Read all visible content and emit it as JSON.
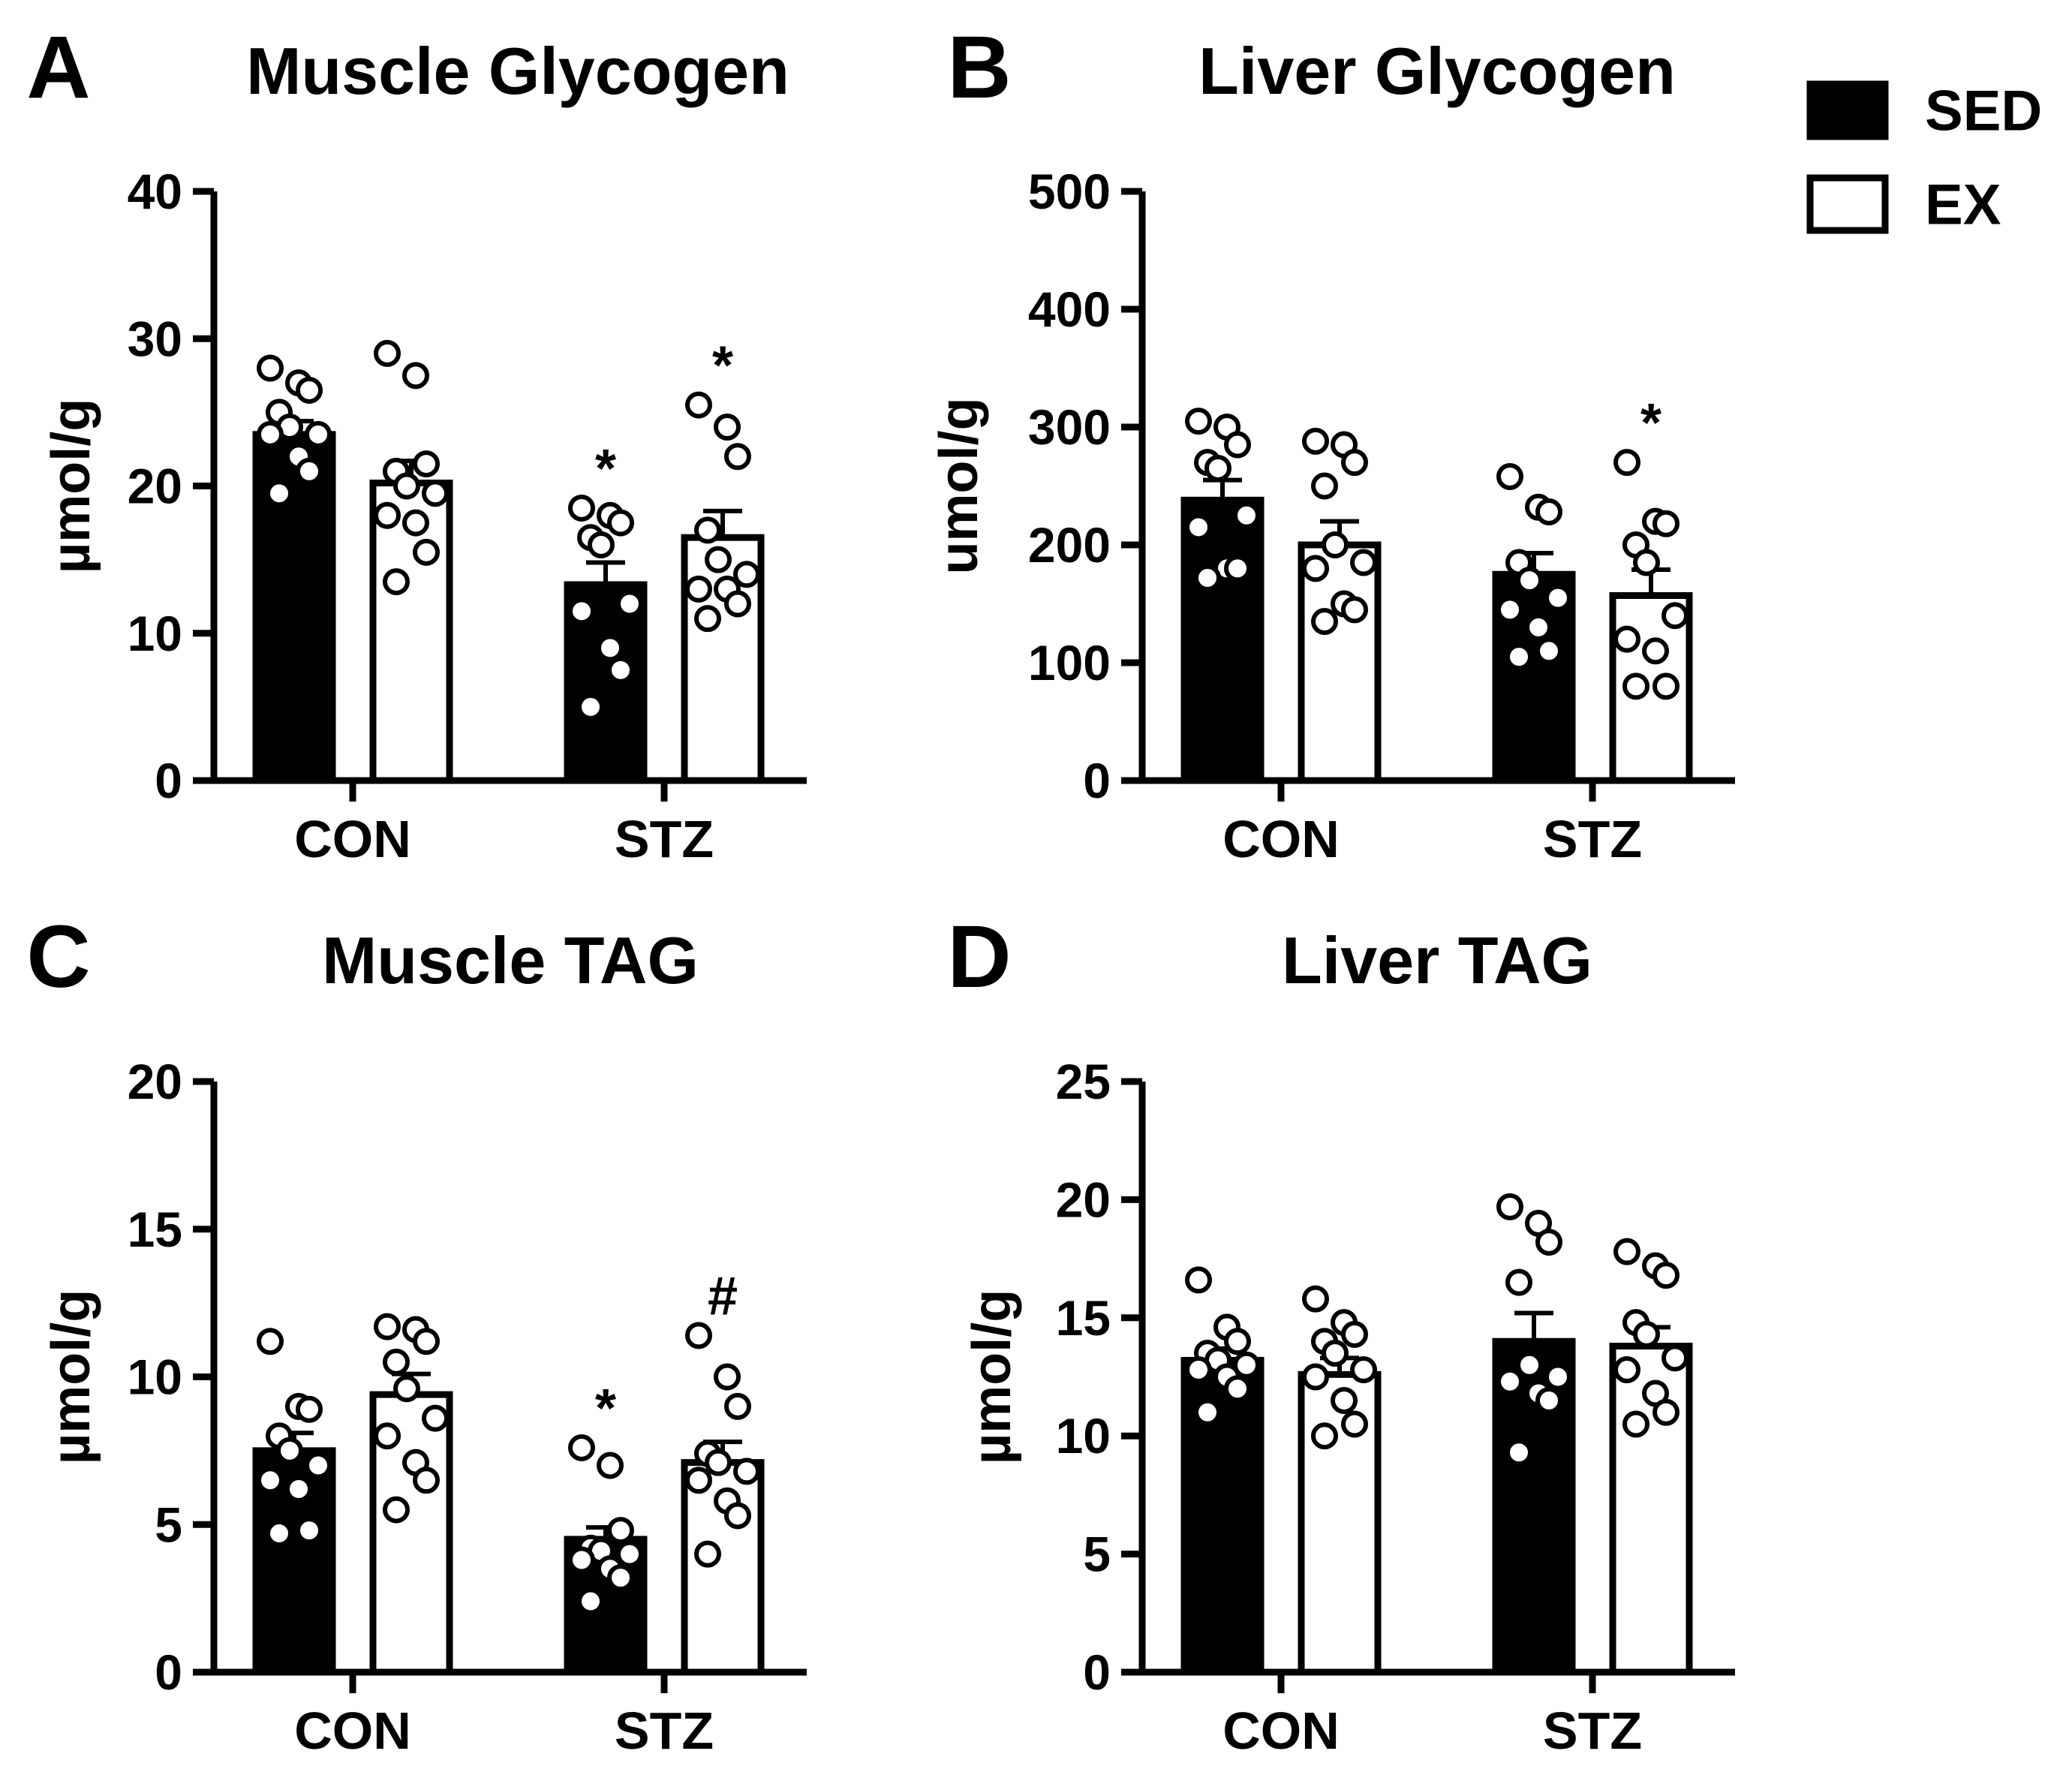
{
  "legend": {
    "items": [
      {
        "label": "SED",
        "fill": "#000000"
      },
      {
        "label": "EX",
        "fill": "#ffffff"
      }
    ]
  },
  "colors": {
    "ink": "#000000",
    "background": "#ffffff"
  },
  "chart_data": [
    {
      "panel": "A",
      "type": "bar",
      "title": "Muscle Glycogen",
      "ylabel": "µmol/g",
      "ylim": [
        0,
        40
      ],
      "yticks": [
        0,
        10,
        20,
        30,
        40
      ],
      "categories": [
        "CON",
        "STZ"
      ],
      "series": [
        {
          "name": "SED",
          "values": [
            23.5,
            13.3
          ],
          "sem": [
            0.9,
            1.5
          ],
          "points": [
            [
              28,
              27,
              26.5,
              25,
              24,
              23.5,
              23.5,
              22,
              21,
              19.5
            ],
            [
              18.5,
              18,
              17.5,
              16.5,
              16,
              12,
              11.5,
              9,
              7.5,
              5
            ]
          ],
          "annotations": [
            "",
            "*"
          ]
        },
        {
          "name": "EX",
          "values": [
            20.2,
            16.5
          ],
          "sem": [
            1.5,
            1.8
          ],
          "points": [
            [
              29,
              27.5,
              21.5,
              21,
              20,
              19.5,
              18,
              17.5,
              15.5,
              13.5
            ],
            [
              25.5,
              24,
              22,
              17,
              15,
              14,
              13,
              13,
              12,
              11
            ]
          ],
          "annotations": [
            "",
            "*"
          ]
        }
      ]
    },
    {
      "panel": "B",
      "type": "bar",
      "title": "Liver Glycogen",
      "ylabel": "umol/g",
      "ylim": [
        0,
        500
      ],
      "yticks": [
        0,
        100,
        200,
        300,
        400,
        500
      ],
      "categories": [
        "CON",
        "STZ"
      ],
      "series": [
        {
          "name": "SED",
          "values": [
            238,
            175
          ],
          "sem": [
            17,
            18
          ],
          "points": [
            [
              305,
              300,
              285,
              270,
              265,
              225,
              215,
              180,
              180,
              172
            ],
            [
              258,
              232,
              228,
              185,
              170,
              155,
              145,
              130,
              110,
              105
            ]
          ],
          "annotations": [
            "",
            ""
          ]
        },
        {
          "name": "EX",
          "values": [
            200,
            157
          ],
          "sem": [
            20,
            22
          ],
          "points": [
            [
              288,
              285,
              270,
              250,
              200,
              185,
              180,
              150,
              145,
              135
            ],
            [
              270,
              220,
              218,
              200,
              185,
              140,
              120,
              110,
              80,
              80
            ]
          ],
          "annotations": [
            "",
            "*"
          ]
        }
      ]
    },
    {
      "panel": "C",
      "type": "bar",
      "title": "Muscle TAG",
      "ylabel": "µmol/g",
      "ylim": [
        0,
        20
      ],
      "yticks": [
        0,
        5,
        10,
        15,
        20
      ],
      "categories": [
        "CON",
        "STZ"
      ],
      "series": [
        {
          "name": "SED",
          "values": [
            7.5,
            4.5
          ],
          "sem": [
            0.6,
            0.4
          ],
          "points": [
            [
              11.2,
              9,
              8.9,
              8,
              7.5,
              7,
              6.5,
              6.2,
              4.8,
              4.7
            ],
            [
              7.6,
              7,
              4.8,
              4.2,
              4.1,
              4,
              3.8,
              3.5,
              3.2,
              2.4
            ]
          ],
          "annotations": [
            "",
            "*"
          ]
        },
        {
          "name": "EX",
          "values": [
            9.4,
            7.1
          ],
          "sem": [
            0.7,
            0.7
          ],
          "points": [
            [
              11.7,
              11.6,
              11.2,
              10.5,
              9.6,
              8.6,
              8,
              7.1,
              6.5,
              5.5
            ],
            [
              11.4,
              10,
              9,
              7.4,
              7.1,
              6.8,
              6.5,
              5.8,
              5.3,
              4
            ]
          ],
          "annotations": [
            "",
            "#"
          ]
        }
      ]
    },
    {
      "panel": "D",
      "type": "bar",
      "title": "Liver TAG",
      "ylabel": "µmol/g",
      "ylim": [
        0,
        25
      ],
      "yticks": [
        0,
        5,
        10,
        15,
        20,
        25
      ],
      "categories": [
        "CON",
        "STZ"
      ],
      "series": [
        {
          "name": "SED",
          "values": [
            13.2,
            14.0
          ],
          "sem": [
            0.5,
            1.2
          ],
          "points": [
            [
              16.6,
              14.6,
              14,
              13.5,
              13.2,
              13,
              12.8,
              12.5,
              12,
              11
            ],
            [
              19.7,
              19,
              18.2,
              16.5,
              13,
              12.5,
              12.3,
              11.8,
              11.5,
              9.3
            ]
          ],
          "annotations": [
            "",
            ""
          ]
        },
        {
          "name": "EX",
          "values": [
            12.6,
            13.8
          ],
          "sem": [
            0.7,
            0.8
          ],
          "points": [
            [
              15.8,
              14.8,
              14.3,
              14,
              13.5,
              12.8,
              12.5,
              11.5,
              10.5,
              10
            ],
            [
              17.8,
              17.2,
              16.8,
              14.8,
              14.3,
              13.3,
              12.8,
              11.8,
              11,
              10.5
            ]
          ],
          "annotations": [
            "",
            ""
          ]
        }
      ]
    }
  ]
}
